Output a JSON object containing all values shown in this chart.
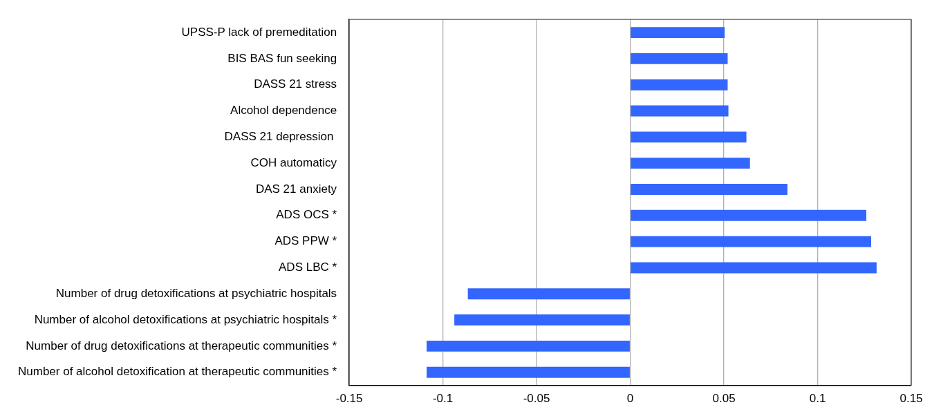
{
  "chart_data": {
    "type": "bar",
    "orientation": "horizontal",
    "categories": [
      "UPSS-P lack of premeditation",
      "BIS BAS fun seeking",
      "DASS 21 stress",
      "Alcohol dependence",
      "DASS 21 depression ",
      "COH automaticy",
      "DAS 21 anxiety",
      "ADS OCS *",
      "ADS PPW *",
      "ADS LBC *",
      "Number of drug detoxifications at psychiatric hospitals",
      "Number of alcohol detoxifications at psychiatric hospitals *",
      "Number of drug detoxifications at therapeutic communities *",
      "Number of alcohol detoxification at therapeutic communities *"
    ],
    "values": [
      0.0504,
      0.052,
      0.052,
      0.0524,
      0.062,
      0.0639,
      0.0839,
      0.126,
      0.1286,
      0.1315,
      -0.0867,
      -0.0939,
      -0.1087,
      -0.1087
    ],
    "color": "#3366ff",
    "xlim": [
      -0.15,
      0.15
    ],
    "xticks": [
      -0.15,
      -0.1,
      -0.05,
      0,
      0.05,
      0.1,
      0.15
    ],
    "grid": "x",
    "legend": false
  }
}
